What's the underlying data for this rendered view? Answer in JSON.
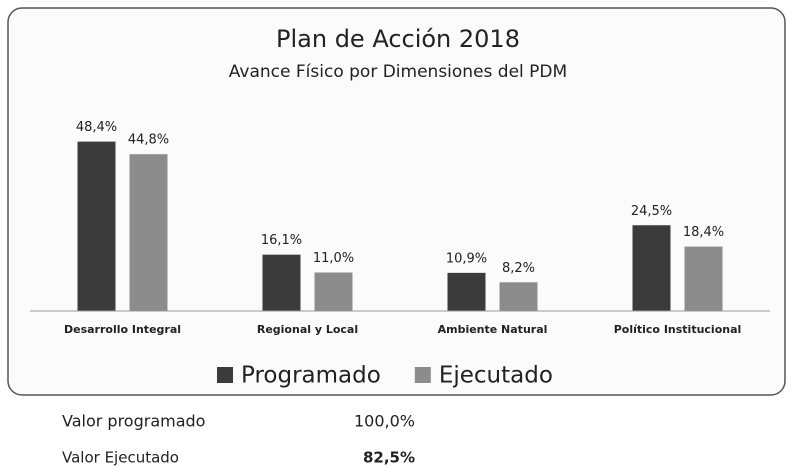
{
  "chart_data": {
    "type": "bar",
    "title": "Plan de Acción 2018",
    "subtitle": "Avance Físico por Dimensiones del PDM",
    "categories": [
      "Desarrollo Integral",
      "Regional y Local",
      "Ambiente Natural",
      "Político Institucional"
    ],
    "series": [
      {
        "name": "Programado",
        "color": "#3b3b3b",
        "values": [
          48.4,
          16.1,
          10.9,
          24.5
        ],
        "value_labels": [
          "48,4%",
          "16,1%",
          "10,9%",
          "24,5%"
        ]
      },
      {
        "name": "Ejecutado",
        "color": "#8c8c8c",
        "values": [
          44.8,
          11.0,
          8.2,
          18.4
        ],
        "value_labels": [
          "44,8%",
          "11,0%",
          "8,2%",
          "18,4%"
        ]
      }
    ],
    "ylim": [
      0,
      50
    ],
    "legend": "bottom"
  },
  "summary": {
    "rows": [
      [
        "Valor programado",
        "100,0%"
      ],
      [
        "Valor Ejecutado",
        "82,5%"
      ]
    ]
  }
}
